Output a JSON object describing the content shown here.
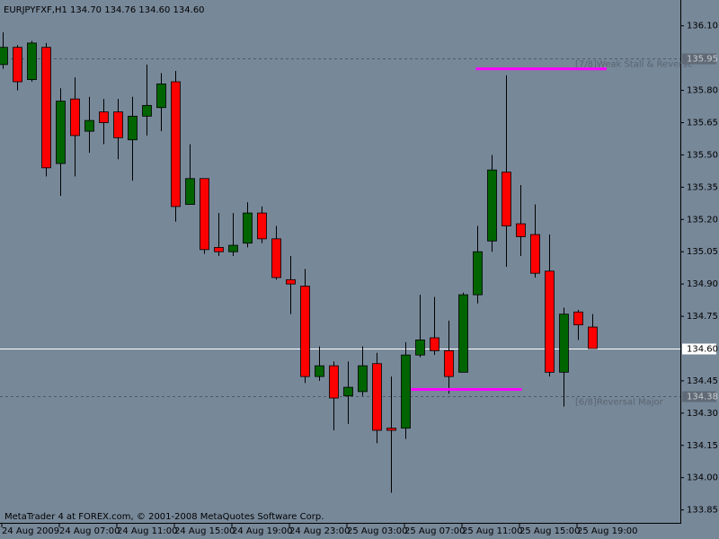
{
  "chart_data": {
    "type": "candlestick",
    "title": "EURJPYFXF,H1  134.70 134.76 134.60 134.60",
    "footer": "MetaTrader 4 at FOREX.com, © 2001-2008 MetaQuotes Software Corp.",
    "categories": [
      "24 Aug 2009",
      null,
      null,
      null,
      "24 Aug 07:00",
      null,
      null,
      null,
      "24 Aug 11:00",
      null,
      null,
      null,
      "24 Aug 15:00",
      null,
      null,
      null,
      "24 Aug 19:00",
      null,
      null,
      null,
      "24 Aug 23:00",
      null,
      null,
      null,
      "25 Aug 03:00",
      null,
      null,
      null,
      "25 Aug 07:00",
      null,
      null,
      null,
      "25 Aug 11:00",
      null,
      null,
      null,
      "25 Aug 15:00",
      null,
      null,
      null,
      "25 Aug 19:00",
      null
    ],
    "open": [
      135.92,
      136.0,
      135.85,
      136.0,
      135.46,
      135.76,
      135.61,
      135.7,
      135.7,
      135.57,
      135.68,
      135.72,
      135.84,
      135.27,
      135.39,
      135.07,
      135.05,
      135.09,
      135.23,
      135.11,
      134.92,
      134.89,
      134.47,
      134.52,
      134.38,
      134.4,
      134.53,
      134.23,
      134.23,
      134.57,
      134.65,
      134.59,
      134.49,
      134.85,
      135.1,
      135.42,
      135.18,
      135.13,
      134.96,
      134.49,
      134.77,
      134.7
    ],
    "high": [
      136.07,
      136.01,
      136.03,
      136.02,
      135.81,
      135.86,
      135.77,
      135.76,
      135.76,
      135.77,
      135.92,
      135.88,
      135.89,
      135.55,
      135.39,
      135.23,
      135.23,
      135.28,
      135.26,
      135.17,
      135.03,
      134.97,
      134.61,
      134.54,
      134.54,
      134.61,
      134.58,
      134.47,
      134.63,
      134.85,
      134.84,
      134.73,
      134.86,
      135.17,
      135.5,
      135.87,
      135.36,
      135.27,
      135.13,
      134.79,
      134.78,
      134.76
    ],
    "low": [
      135.9,
      135.8,
      135.84,
      135.4,
      135.31,
      135.4,
      135.51,
      135.55,
      135.48,
      135.38,
      135.59,
      135.61,
      135.19,
      135.27,
      135.04,
      135.03,
      135.03,
      135.07,
      135.09,
      134.92,
      134.76,
      134.44,
      134.45,
      134.22,
      134.25,
      134.38,
      134.16,
      133.93,
      134.18,
      134.56,
      134.57,
      134.39,
      134.49,
      134.81,
      135.05,
      134.98,
      135.03,
      134.93,
      134.47,
      134.33,
      134.64,
      134.6
    ],
    "close": [
      136.0,
      135.84,
      136.02,
      135.44,
      135.75,
      135.59,
      135.66,
      135.65,
      135.58,
      135.68,
      135.73,
      135.83,
      135.26,
      135.39,
      135.06,
      135.05,
      135.08,
      135.23,
      135.11,
      134.93,
      134.9,
      134.47,
      134.52,
      134.37,
      134.42,
      134.52,
      134.22,
      134.22,
      134.57,
      134.64,
      134.59,
      134.47,
      134.85,
      135.05,
      135.43,
      135.17,
      135.12,
      134.95,
      134.49,
      134.76,
      134.71,
      134.6
    ],
    "up_color": "#006400",
    "down_color": "#ff0000",
    "ylim": [
      133.79,
      136.22
    ],
    "yticks": [
      {
        "value": 136.1,
        "label": "136.10"
      },
      {
        "value": 135.8,
        "label": "135.80"
      },
      135.65,
      {
        "value": 135.5,
        "label": "135.50"
      },
      135.35,
      {
        "value": 135.2,
        "label": "135.20"
      },
      135.05,
      {
        "value": 134.9,
        "label": "134.90"
      },
      134.75,
      134.45,
      {
        "value": 134.3,
        "label": "134.30"
      },
      134.15,
      {
        "value": 134.0,
        "label": "134.00"
      },
      133.85
    ],
    "levels": [
      {
        "value": 135.95,
        "label": "135.95",
        "text": "[7/8]Weak Stall & Reverse",
        "style": "dashed"
      },
      {
        "value": 134.38,
        "label": "134.38",
        "text": "[6/8]Reversal Major",
        "style": "dashed"
      },
      {
        "value": 134.6,
        "label": "134.60",
        "style": "current"
      }
    ],
    "segments": [
      {
        "value": 135.9,
        "x": [
          32.9,
          42
        ],
        "color": "#ff00ff"
      },
      {
        "value": 134.41,
        "x": [
          28.4,
          36.1
        ],
        "color": "#ff00ff"
      }
    ]
  }
}
